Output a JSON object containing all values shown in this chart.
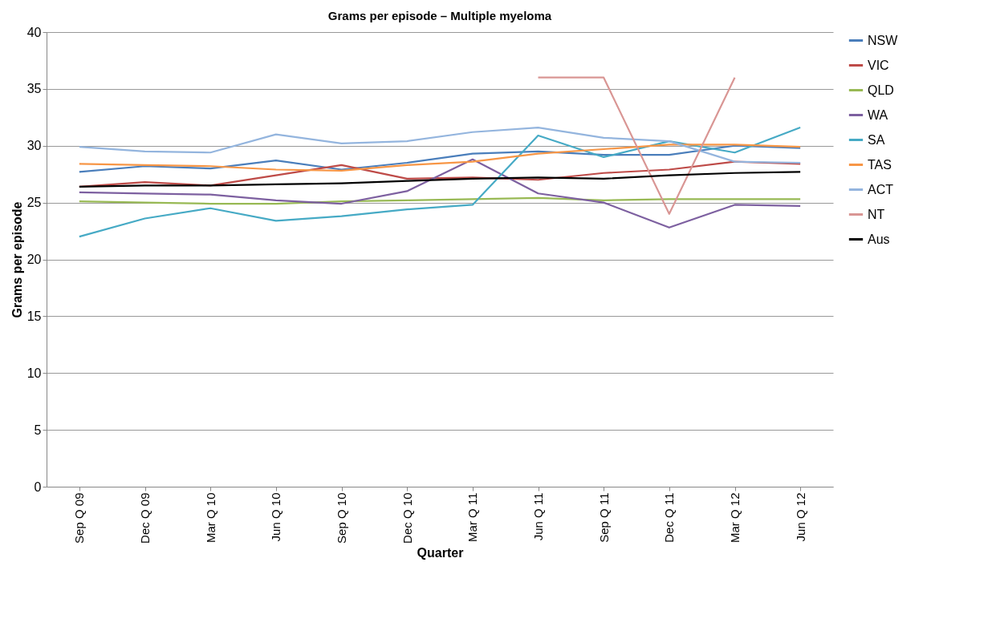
{
  "chart_data": {
    "type": "line",
    "title": "Grams per episode – Multiple myeloma",
    "xlabel": "Quarter",
    "ylabel": "Grams per episode",
    "categories": [
      "Sep Q 09",
      "Dec Q 09",
      "Mar Q 10",
      "Jun Q 10",
      "Sep Q 10",
      "Dec Q 10",
      "Mar Q 11",
      "Jun Q 11",
      "Sep Q 11",
      "Dec Q 11",
      "Mar Q 12",
      "Jun Q 12"
    ],
    "ylim": [
      0,
      40
    ],
    "yticks": [
      0,
      5,
      10,
      15,
      20,
      25,
      30,
      35,
      40
    ],
    "grid": "y",
    "legend": "right",
    "marker": "none",
    "line_style": "solid",
    "series": [
      {
        "name": "NSW",
        "color": "#4a7ebb",
        "values": [
          27.7,
          28.2,
          28.0,
          28.7,
          27.9,
          28.5,
          29.3,
          29.5,
          29.2,
          29.2,
          30.0,
          29.8
        ]
      },
      {
        "name": "VIC",
        "color": "#be4b48",
        "values": [
          26.4,
          26.8,
          26.5,
          27.4,
          28.3,
          27.1,
          27.2,
          27.0,
          27.6,
          27.9,
          28.6,
          28.4
        ]
      },
      {
        "name": "QLD",
        "color": "#98b954",
        "values": [
          25.1,
          25.0,
          24.9,
          24.9,
          25.1,
          25.2,
          25.3,
          25.4,
          25.2,
          25.3,
          25.3,
          25.3
        ]
      },
      {
        "name": "WA",
        "color": "#7d60a0",
        "values": [
          25.9,
          25.8,
          25.7,
          25.2,
          24.9,
          26.0,
          28.8,
          25.8,
          25.0,
          22.8,
          24.8,
          24.7
        ]
      },
      {
        "name": "SA",
        "color": "#46aac5",
        "values": [
          22.0,
          23.6,
          24.5,
          23.4,
          23.8,
          24.4,
          24.8,
          30.9,
          29.0,
          30.4,
          29.4,
          31.6
        ]
      },
      {
        "name": "TAS",
        "color": "#f79646",
        "values": [
          28.4,
          28.3,
          28.2,
          27.9,
          27.8,
          28.3,
          28.6,
          29.3,
          29.7,
          30.1,
          30.1,
          29.9
        ]
      },
      {
        "name": "ACT",
        "color": "#94b5de",
        "values": [
          29.9,
          29.5,
          29.4,
          31.0,
          30.2,
          30.4,
          31.2,
          31.6,
          30.7,
          30.4,
          28.6,
          28.5
        ]
      },
      {
        "name": "NT",
        "color": "#d99694",
        "values": [
          null,
          null,
          null,
          null,
          null,
          null,
          null,
          36,
          36,
          24,
          36,
          null
        ]
      },
      {
        "name": "Aus",
        "color": "#000000",
        "values": [
          26.4,
          26.5,
          26.5,
          26.6,
          26.7,
          26.9,
          27.1,
          27.2,
          27.1,
          27.4,
          27.6,
          27.7
        ]
      }
    ]
  }
}
